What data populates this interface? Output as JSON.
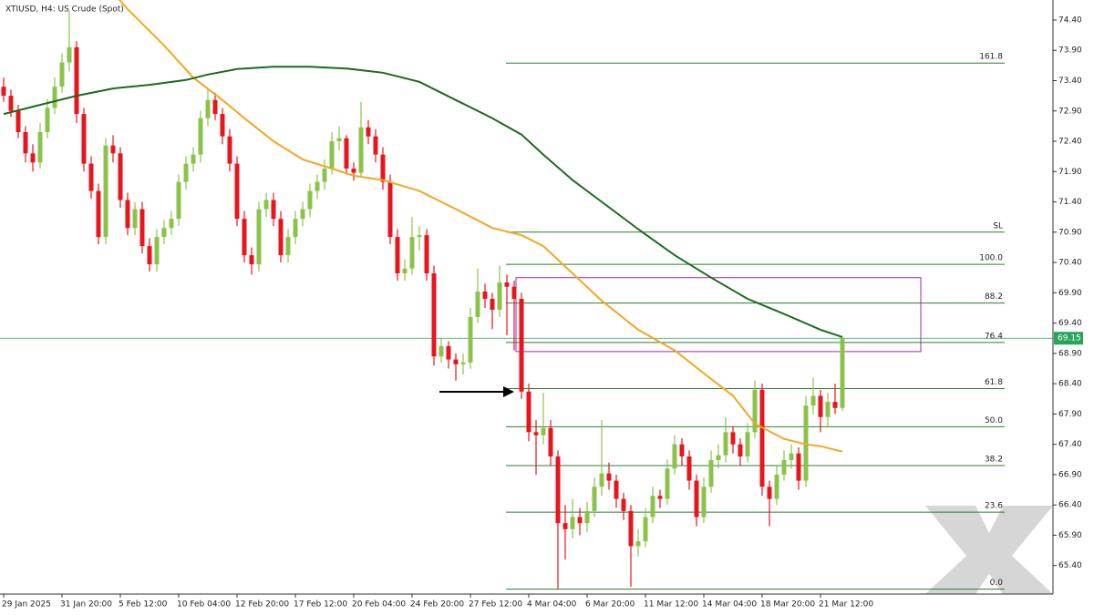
{
  "chart_data": {
    "type": "candlestick",
    "title": "XTIUSD, H4:  US Crude (Spot)",
    "categories": [
      "29 Jan 2025",
      null,
      null,
      null,
      null,
      null,
      null,
      null,
      "31 Jan 20:00",
      null,
      null,
      null,
      null,
      null,
      null,
      null,
      "5 Feb 12:00",
      null,
      null,
      null,
      null,
      null,
      null,
      null,
      "10 Feb 04:00",
      null,
      null,
      null,
      null,
      null,
      null,
      null,
      "12 Feb 20:00",
      null,
      null,
      null,
      null,
      null,
      null,
      null,
      "17 Feb 12:00",
      null,
      null,
      null,
      null,
      null,
      null,
      null,
      "20 Feb 04:00",
      null,
      null,
      null,
      null,
      null,
      null,
      null,
      "24 Feb 20:00",
      null,
      null,
      null,
      null,
      null,
      null,
      null,
      "27 Feb 12:00",
      null,
      null,
      null,
      null,
      null,
      null,
      null,
      "4 Mar 04:00",
      null,
      null,
      null,
      null,
      null,
      null,
      null,
      "6 Mar 20:00",
      null,
      null,
      null,
      null,
      null,
      null,
      null,
      "11 Mar 12:00",
      null,
      null,
      null,
      null,
      null,
      null,
      null,
      "14 Mar 04:00",
      null,
      null,
      null,
      null,
      null,
      null,
      null,
      "18 Mar 20:00",
      null,
      null,
      null,
      null,
      null,
      null,
      null,
      "21 Mar 12:00",
      null,
      null,
      null
    ],
    "ohlc": [
      [
        73.3,
        73.45,
        73.05,
        73.15
      ],
      [
        73.15,
        73.25,
        72.8,
        72.9
      ],
      [
        72.9,
        73.0,
        72.45,
        72.55
      ],
      [
        72.55,
        72.65,
        72.05,
        72.2
      ],
      [
        72.2,
        72.35,
        71.9,
        72.05
      ],
      [
        72.05,
        72.7,
        71.95,
        72.55
      ],
      [
        72.55,
        73.1,
        72.45,
        72.95
      ],
      [
        72.95,
        73.45,
        72.85,
        73.3
      ],
      [
        73.3,
        73.85,
        73.2,
        73.7
      ],
      [
        73.7,
        74.55,
        73.55,
        73.95
      ],
      [
        73.95,
        74.05,
        72.7,
        72.85
      ],
      [
        72.85,
        72.95,
        71.9,
        72.03
      ],
      [
        72.03,
        72.15,
        71.45,
        71.58
      ],
      [
        71.58,
        71.7,
        70.7,
        70.82
      ],
      [
        70.82,
        72.45,
        70.7,
        72.33
      ],
      [
        72.33,
        72.5,
        72.05,
        72.2
      ],
      [
        72.2,
        72.3,
        71.3,
        71.43
      ],
      [
        71.43,
        71.55,
        70.85,
        70.97
      ],
      [
        70.97,
        71.4,
        70.85,
        71.28
      ],
      [
        71.28,
        71.4,
        70.55,
        70.67
      ],
      [
        70.67,
        70.8,
        70.25,
        70.37
      ],
      [
        70.37,
        70.95,
        70.25,
        70.82
      ],
      [
        70.82,
        71.1,
        70.7,
        70.97
      ],
      [
        70.97,
        71.25,
        70.85,
        71.12
      ],
      [
        71.12,
        71.85,
        71.0,
        71.73
      ],
      [
        71.73,
        72.15,
        71.6,
        72.03
      ],
      [
        72.03,
        72.3,
        71.9,
        72.18
      ],
      [
        72.18,
        72.9,
        72.05,
        72.78
      ],
      [
        72.78,
        73.25,
        72.65,
        73.08
      ],
      [
        73.08,
        73.2,
        72.75,
        72.85
      ],
      [
        72.85,
        72.95,
        72.35,
        72.48
      ],
      [
        72.48,
        72.6,
        71.9,
        72.03
      ],
      [
        72.03,
        72.15,
        71.0,
        71.12
      ],
      [
        71.12,
        71.25,
        70.4,
        70.52
      ],
      [
        70.52,
        70.65,
        70.2,
        70.37
      ],
      [
        70.37,
        71.4,
        70.25,
        71.28
      ],
      [
        71.28,
        71.55,
        71.15,
        71.43
      ],
      [
        71.43,
        71.55,
        71.0,
        71.12
      ],
      [
        71.12,
        71.25,
        70.4,
        70.52
      ],
      [
        70.52,
        70.95,
        70.4,
        70.82
      ],
      [
        70.82,
        71.25,
        70.7,
        71.12
      ],
      [
        71.12,
        71.4,
        71.0,
        71.28
      ],
      [
        71.28,
        71.7,
        71.15,
        71.58
      ],
      [
        71.58,
        71.85,
        71.45,
        71.73
      ],
      [
        71.73,
        72.1,
        71.6,
        71.95
      ],
      [
        71.95,
        72.55,
        71.85,
        72.4
      ],
      [
        72.4,
        72.65,
        72.25,
        72.45
      ],
      [
        72.45,
        72.5,
        71.85,
        71.95
      ],
      [
        71.95,
        72.05,
        71.75,
        71.88
      ],
      [
        71.88,
        73.05,
        71.8,
        72.63
      ],
      [
        72.63,
        72.75,
        72.35,
        72.48
      ],
      [
        72.48,
        72.6,
        72.05,
        72.18
      ],
      [
        72.18,
        72.3,
        71.6,
        71.73
      ],
      [
        71.73,
        71.85,
        70.7,
        70.82
      ],
      [
        70.82,
        70.95,
        70.1,
        70.22
      ],
      [
        70.22,
        70.45,
        70.1,
        70.3
      ],
      [
        70.3,
        71.15,
        70.2,
        70.82
      ],
      [
        70.82,
        71.0,
        70.6,
        70.85
      ],
      [
        70.85,
        70.95,
        70.1,
        70.22
      ],
      [
        70.22,
        70.35,
        68.7,
        68.85
      ],
      [
        68.85,
        69.15,
        68.75,
        69.02
      ],
      [
        69.02,
        69.1,
        68.65,
        68.8
      ],
      [
        68.8,
        68.9,
        68.45,
        68.72
      ],
      [
        68.72,
        68.9,
        68.55,
        68.75
      ],
      [
        68.75,
        69.65,
        68.65,
        69.5
      ],
      [
        69.5,
        70.3,
        69.4,
        69.92
      ],
      [
        69.92,
        70.05,
        69.65,
        69.8
      ],
      [
        69.8,
        69.9,
        69.3,
        69.62
      ],
      [
        69.62,
        70.35,
        69.5,
        70.07
      ],
      [
        70.07,
        70.2,
        69.2,
        70.0
      ],
      [
        70.0,
        70.1,
        68.95,
        69.8
      ],
      [
        69.8,
        69.9,
        68.15,
        68.27
      ],
      [
        68.27,
        68.4,
        67.45,
        67.6
      ],
      [
        67.6,
        67.8,
        66.9,
        67.55
      ],
      [
        67.55,
        68.25,
        67.4,
        67.67
      ],
      [
        67.67,
        67.8,
        67.05,
        67.2
      ],
      [
        67.2,
        67.3,
        65.02,
        66.1
      ],
      [
        66.1,
        66.4,
        65.5,
        66.0
      ],
      [
        66.0,
        66.5,
        65.85,
        66.2
      ],
      [
        66.2,
        66.35,
        65.9,
        66.1
      ],
      [
        66.1,
        66.45,
        65.95,
        66.3
      ],
      [
        66.3,
        66.85,
        66.2,
        66.7
      ],
      [
        66.7,
        67.8,
        66.55,
        66.92
      ],
      [
        66.92,
        67.1,
        66.65,
        66.8
      ],
      [
        66.8,
        66.9,
        66.35,
        66.5
      ],
      [
        66.5,
        66.6,
        66.15,
        66.3
      ],
      [
        66.3,
        66.4,
        65.05,
        65.72
      ],
      [
        65.72,
        66.0,
        65.55,
        65.8
      ],
      [
        65.8,
        66.35,
        65.7,
        66.2
      ],
      [
        66.2,
        66.7,
        66.1,
        66.55
      ],
      [
        66.55,
        66.65,
        66.35,
        66.5
      ],
      [
        66.5,
        67.15,
        66.4,
        67.0
      ],
      [
        67.0,
        67.55,
        66.9,
        67.4
      ],
      [
        67.4,
        67.5,
        67.05,
        67.2
      ],
      [
        67.2,
        67.3,
        66.65,
        66.8
      ],
      [
        66.8,
        66.9,
        66.05,
        66.2
      ],
      [
        66.2,
        66.85,
        66.1,
        66.7
      ],
      [
        66.7,
        67.3,
        66.6,
        67.14
      ],
      [
        67.14,
        67.4,
        67.0,
        67.22
      ],
      [
        67.22,
        67.85,
        67.1,
        67.6
      ],
      [
        67.6,
        67.7,
        67.25,
        67.4
      ],
      [
        67.4,
        67.5,
        67.05,
        67.2
      ],
      [
        67.2,
        67.75,
        67.1,
        67.6
      ],
      [
        67.6,
        68.45,
        67.5,
        68.3
      ],
      [
        68.3,
        68.4,
        66.55,
        66.7
      ],
      [
        66.7,
        66.8,
        66.05,
        66.5
      ],
      [
        66.5,
        67.05,
        66.4,
        66.9
      ],
      [
        66.9,
        67.3,
        66.8,
        67.14
      ],
      [
        67.14,
        67.4,
        67.0,
        67.25
      ],
      [
        67.25,
        67.35,
        66.65,
        66.8
      ],
      [
        66.8,
        68.2,
        66.7,
        68.04
      ],
      [
        68.04,
        68.5,
        67.9,
        68.2
      ],
      [
        68.2,
        68.3,
        67.6,
        67.85
      ],
      [
        67.85,
        68.25,
        67.7,
        68.1
      ],
      [
        68.1,
        68.4,
        67.9,
        68.0
      ],
      [
        68.0,
        69.17,
        67.95,
        69.15
      ]
    ],
    "up_color": "#8bc34a",
    "down_color": "#e8141e",
    "moving_averages": [
      {
        "color": "#f5a623",
        "x": [
          15,
          17,
          22,
          26,
          30,
          33,
          37,
          41,
          45,
          48,
          52,
          57,
          62,
          67,
          71,
          74,
          78,
          82,
          87,
          92,
          96,
          100,
          103,
          107,
          110,
          112,
          115
        ],
        "values": [
          74.85,
          74.58,
          73.98,
          73.45,
          73.08,
          72.78,
          72.4,
          72.1,
          71.95,
          71.83,
          71.76,
          71.58,
          71.28,
          70.97,
          70.85,
          70.67,
          70.22,
          69.77,
          69.29,
          68.95,
          68.57,
          68.2,
          67.74,
          67.49,
          67.4,
          67.37,
          67.28
        ]
      },
      {
        "color": "#1b6b1b",
        "x": [
          0,
          5,
          10,
          15,
          20,
          25,
          28,
          32,
          37,
          42,
          47,
          52,
          57,
          62,
          67,
          71,
          74,
          78,
          82,
          87,
          92,
          97,
          102,
          107,
          112,
          115
        ],
        "values": [
          72.85,
          73.0,
          73.15,
          73.27,
          73.33,
          73.41,
          73.5,
          73.59,
          73.63,
          73.63,
          73.6,
          73.53,
          73.38,
          73.08,
          72.78,
          72.51,
          72.18,
          71.76,
          71.4,
          70.95,
          70.52,
          70.15,
          69.8,
          69.55,
          69.29,
          69.17
        ]
      }
    ],
    "levels": [
      {
        "label": "161.8",
        "value": 73.69
      },
      {
        "label": "SL",
        "value": 70.9
      },
      {
        "label": "100.0",
        "value": 70.37
      },
      {
        "label": "88.2",
        "value": 69.73
      },
      {
        "label": "76.4",
        "value": 69.08
      },
      {
        "label": "61.8",
        "value": 68.32
      },
      {
        "label": "50.0",
        "value": 67.69
      },
      {
        "label": "38.2",
        "value": 67.05
      },
      {
        "label": "23.6",
        "value": 66.28
      },
      {
        "label": "0.0",
        "value": 65.01
      }
    ],
    "level_color": "#2e7d32",
    "zone": {
      "top": 70.15,
      "bottom": 68.93,
      "color": "#9c27b0"
    },
    "last_price": 69.15,
    "last_price_color": "#26a65b",
    "ylim": [
      64.93,
      74.73
    ],
    "yticks": [
      {
        "value": 65.4,
        "label": "65.40"
      },
      {
        "value": 65.9,
        "label": "65.90"
      },
      {
        "value": 66.4,
        "label": "66.40"
      },
      {
        "value": 66.9,
        "label": "66.90"
      },
      {
        "value": 67.4,
        "label": "67.40"
      },
      {
        "value": 67.9,
        "label": "67.90"
      },
      {
        "value": 68.4,
        "label": "68.40"
      },
      {
        "value": 68.9,
        "label": "68.90"
      },
      {
        "value": 69.4,
        "label": "69.40"
      },
      {
        "value": 69.9,
        "label": "69.90"
      },
      {
        "value": 70.4,
        "label": "70.40"
      },
      {
        "value": 70.9,
        "label": "70.90"
      },
      {
        "value": 71.4,
        "label": "71.40"
      },
      {
        "value": 71.9,
        "label": "71.90"
      },
      {
        "value": 72.4,
        "label": "72.40"
      },
      {
        "value": 72.9,
        "label": "72.90"
      },
      {
        "value": 73.4,
        "label": "73.40"
      },
      {
        "value": 73.9,
        "label": "73.90"
      },
      {
        "value": 74.4,
        "label": "74.40"
      }
    ]
  }
}
